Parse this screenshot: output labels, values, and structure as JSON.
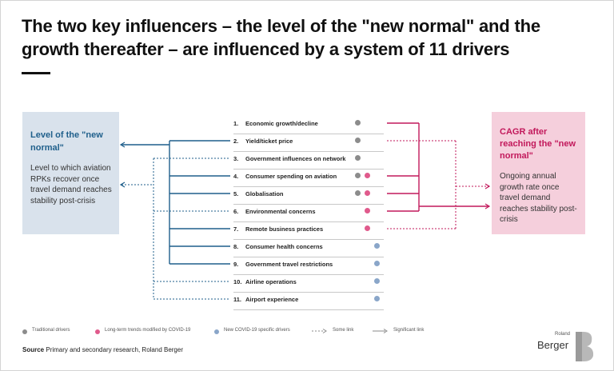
{
  "title": "The two key influencers – the level of the \"new normal\" and the growth thereafter – are influenced by a system of 11 drivers",
  "left_box": {
    "title": "Level of the \"new normal\"",
    "text": "Level to which aviation RPKs recover once travel demand reaches stability post-crisis",
    "color": "#1f5f8b",
    "background": "#d9e2ec"
  },
  "right_box": {
    "title": "CAGR after reaching the \"new normal\"",
    "text": "Ongoing annual growth rate once travel demand reaches stability post-crisis",
    "color": "#c2185b",
    "background": "#f5cfdc"
  },
  "drivers": [
    {
      "num": "1.",
      "label": "Economic growth/decline",
      "types": [
        "traditional"
      ]
    },
    {
      "num": "2.",
      "label": "Yield/ticket price",
      "types": [
        "traditional"
      ]
    },
    {
      "num": "3.",
      "label": "Government influences on network",
      "types": [
        "traditional"
      ]
    },
    {
      "num": "4.",
      "label": "Consumer spending on aviation",
      "types": [
        "traditional",
        "long-term"
      ]
    },
    {
      "num": "5.",
      "label": "Globalisation",
      "types": [
        "traditional",
        "long-term"
      ]
    },
    {
      "num": "6.",
      "label": "Environmental concerns",
      "types": [
        "long-term"
      ]
    },
    {
      "num": "7.",
      "label": "Remote business practices",
      "types": [
        "long-term"
      ]
    },
    {
      "num": "8.",
      "label": "Consumer health concerns",
      "types": [
        "new-covid"
      ]
    },
    {
      "num": "9.",
      "label": "Government travel restrictions",
      "types": [
        "new-covid"
      ]
    },
    {
      "num": "10.",
      "label": "Airline operations",
      "types": [
        "new-covid"
      ]
    },
    {
      "num": "11.",
      "label": "Airport experience",
      "types": [
        "new-covid"
      ]
    }
  ],
  "links": {
    "left": [
      {
        "driver": 2,
        "strength": "significant"
      },
      {
        "driver": 3,
        "strength": "some"
      },
      {
        "driver": 4,
        "strength": "significant"
      },
      {
        "driver": 5,
        "strength": "significant"
      },
      {
        "driver": 6,
        "strength": "some"
      },
      {
        "driver": 7,
        "strength": "significant"
      },
      {
        "driver": 8,
        "strength": "significant"
      },
      {
        "driver": 9,
        "strength": "significant"
      },
      {
        "driver": 10,
        "strength": "some"
      },
      {
        "driver": 11,
        "strength": "some"
      }
    ],
    "right": [
      {
        "driver": 1,
        "strength": "significant"
      },
      {
        "driver": 2,
        "strength": "some"
      },
      {
        "driver": 4,
        "strength": "significant"
      },
      {
        "driver": 5,
        "strength": "significant"
      },
      {
        "driver": 6,
        "strength": "significant"
      },
      {
        "driver": 7,
        "strength": "some"
      }
    ]
  },
  "legend": {
    "traditional": "Traditional drivers",
    "long_term": "Long-term trends modified by COVID-19",
    "new_covid": "New COVID-19 specific drivers",
    "some_link": "Some link",
    "significant_link": "Significant link"
  },
  "colors": {
    "traditional": "#8c8c8c",
    "long_term": "#e05a8c",
    "new_covid": "#8aa6c9",
    "left_link": "#1f5f8b",
    "right_link": "#c2185b",
    "legend_link": "#8a8a8a"
  },
  "source": {
    "label": "Source",
    "text": "Primary and secondary research, Roland Berger"
  },
  "logo": {
    "small": "Roland",
    "big": "Berger"
  }
}
